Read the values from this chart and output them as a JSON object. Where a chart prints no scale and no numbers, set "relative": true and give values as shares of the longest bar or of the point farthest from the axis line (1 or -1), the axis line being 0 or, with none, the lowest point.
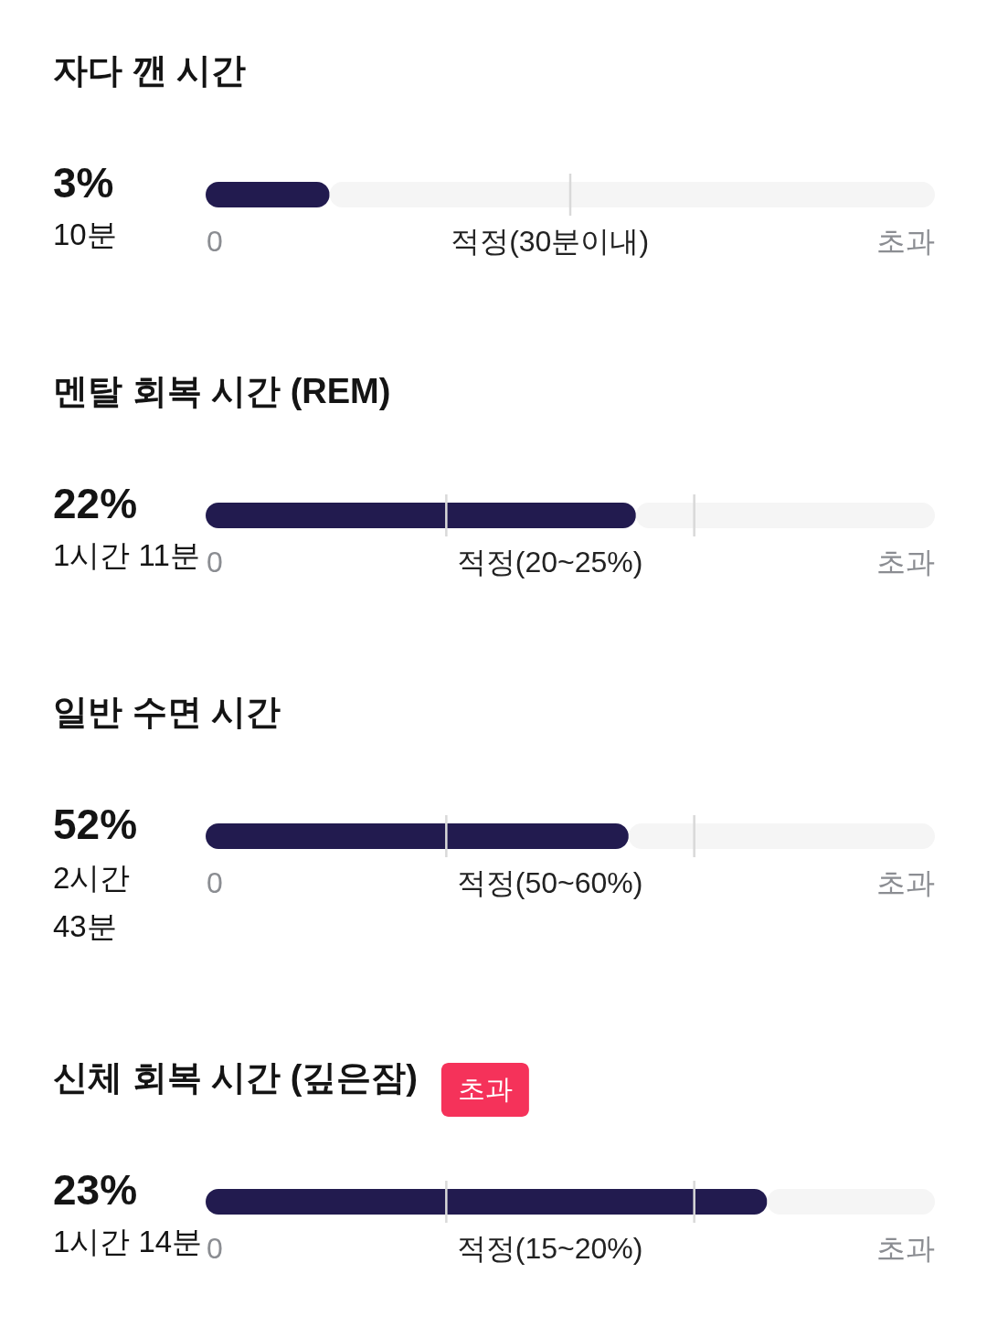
{
  "chart_data": [
    {
      "type": "bar",
      "title": "자다 깬 시간",
      "orientation": "horizontal",
      "stacked": true,
      "relative": true,
      "categories": [
        null
      ],
      "series": [
        {
          "color": "#221b4f",
          "values": [
            0.17
          ]
        },
        {
          "color": "#f5f5f5",
          "values": [
            0.83
          ]
        }
      ],
      "ref_lines": [
        {
          "axis": "x",
          "value": 0.5,
          "color": "#d9d9d9"
        }
      ],
      "annotations": [
        "3%",
        "10분",
        "0",
        "적정(30분이내)",
        "초과"
      ]
    },
    {
      "type": "bar",
      "title": "멘탈 회복 시간 (REM)",
      "orientation": "horizontal",
      "stacked": true,
      "relative": true,
      "categories": [
        null
      ],
      "series": [
        {
          "color": "#221b4f",
          "values": [
            0.59
          ]
        },
        {
          "color": "#f5f5f5",
          "values": [
            0.41
          ]
        }
      ],
      "ref_lines": [
        {
          "axis": "x",
          "value": 0.33,
          "color": "#d9d9d9"
        },
        {
          "axis": "x",
          "value": 0.67,
          "color": "#d9d9d9"
        }
      ],
      "annotations": [
        "22%",
        "1시간 11분",
        "0",
        "적정(20~25%)",
        "초과"
      ]
    },
    {
      "type": "bar",
      "title": "일반 수면 시간",
      "orientation": "horizontal",
      "stacked": true,
      "relative": true,
      "categories": [
        null
      ],
      "series": [
        {
          "color": "#221b4f",
          "values": [
            0.58
          ]
        },
        {
          "color": "#f5f5f5",
          "values": [
            0.42
          ]
        }
      ],
      "ref_lines": [
        {
          "axis": "x",
          "value": 0.33,
          "color": "#d9d9d9"
        },
        {
          "axis": "x",
          "value": 0.67,
          "color": "#d9d9d9"
        }
      ],
      "annotations": [
        "52%",
        "2시간 43분",
        "0",
        "적정(50~60%)",
        "초과"
      ]
    },
    {
      "type": "bar",
      "title": "신체 회복 시간 (깊은잠)",
      "orientation": "horizontal",
      "stacked": true,
      "relative": true,
      "categories": [
        null
      ],
      "series": [
        {
          "color": "#221b4f",
          "values": [
            0.77
          ]
        },
        {
          "color": "#f5f5f5",
          "values": [
            0.23
          ]
        }
      ],
      "ref_lines": [
        {
          "axis": "x",
          "value": 0.33,
          "color": "#d9d9d9"
        },
        {
          "axis": "x",
          "value": 0.67,
          "color": "#d9d9d9"
        }
      ],
      "annotations": [
        "23%",
        "1시간 14분",
        "0",
        "적정(15~20%)",
        "초과",
        "초과"
      ]
    }
  ]
}
